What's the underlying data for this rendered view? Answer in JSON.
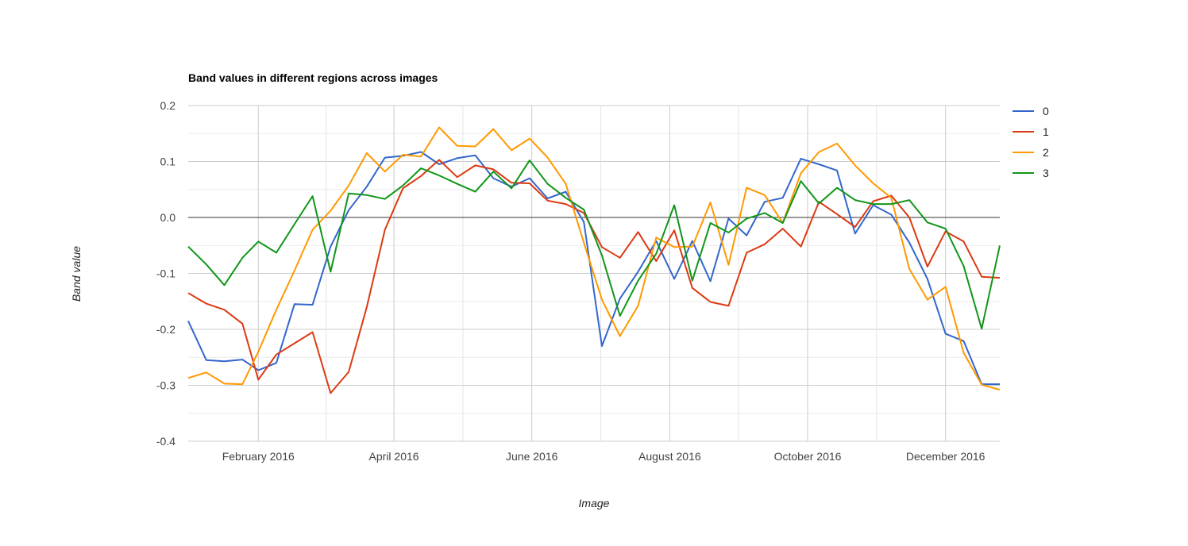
{
  "chart_data": {
    "type": "line",
    "title": "Band values in different regions across images",
    "xlabel": "Image",
    "ylabel": "Band value",
    "ylim": [
      -0.4,
      0.2
    ],
    "y_ticks": [
      "0.2",
      "0.1",
      "0.0",
      "-0.1",
      "-0.2",
      "-0.3",
      "-0.4"
    ],
    "x_ticks": [
      "February 2016",
      "April 2016",
      "June 2016",
      "August 2016",
      "October 2016",
      "December 2016"
    ],
    "x_tick_dates": [
      "2016-02-01",
      "2016-04-01",
      "2016-06-01",
      "2016-08-01",
      "2016-10-01",
      "2016-12-01"
    ],
    "xlim": [
      "2016-01-01",
      "2016-12-25"
    ],
    "grid": true,
    "legend_position": "right",
    "x": [
      "2016-01-01",
      "2016-01-09",
      "2016-01-17",
      "2016-01-25",
      "2016-02-01",
      "2016-02-09",
      "2016-02-17",
      "2016-02-25",
      "2016-03-04",
      "2016-03-12",
      "2016-03-20",
      "2016-03-28",
      "2016-04-05",
      "2016-04-13",
      "2016-04-21",
      "2016-04-29",
      "2016-05-07",
      "2016-05-15",
      "2016-05-23",
      "2016-05-31",
      "2016-06-08",
      "2016-06-16",
      "2016-06-24",
      "2016-07-02",
      "2016-07-10",
      "2016-07-18",
      "2016-07-26",
      "2016-08-03",
      "2016-08-11",
      "2016-08-19",
      "2016-08-27",
      "2016-09-04",
      "2016-09-12",
      "2016-09-20",
      "2016-09-28",
      "2016-10-06",
      "2016-10-14",
      "2016-10-22",
      "2016-10-30",
      "2016-11-07",
      "2016-11-15",
      "2016-11-23",
      "2016-12-01",
      "2016-12-09",
      "2016-12-17",
      "2016-12-25"
    ],
    "series": [
      {
        "name": "0",
        "color": "#3366cc",
        "values": [
          -0.185,
          -0.255,
          -0.257,
          -0.254,
          -0.273,
          -0.26,
          -0.155,
          -0.156,
          -0.052,
          0.013,
          0.055,
          0.107,
          0.11,
          0.117,
          0.095,
          0.106,
          0.111,
          0.07,
          0.055,
          0.07,
          0.034,
          0.046,
          -0.008,
          -0.23,
          -0.145,
          -0.097,
          -0.042,
          -0.11,
          -0.042,
          -0.114,
          -0.002,
          -0.032,
          0.028,
          0.035,
          0.105,
          0.095,
          0.084,
          -0.029,
          0.022,
          0.005,
          -0.045,
          -0.11,
          -0.208,
          -0.221,
          -0.298,
          -0.298
        ]
      },
      {
        "name": "1",
        "color": "#dc3912",
        "values": [
          -0.135,
          -0.154,
          -0.165,
          -0.19,
          -0.29,
          -0.245,
          -0.225,
          -0.205,
          -0.314,
          -0.276,
          -0.16,
          -0.022,
          0.052,
          0.074,
          0.103,
          0.072,
          0.093,
          0.086,
          0.062,
          0.061,
          0.03,
          0.024,
          0.008,
          -0.053,
          -0.072,
          -0.026,
          -0.078,
          -0.023,
          -0.126,
          -0.151,
          -0.158,
          -0.063,
          -0.048,
          -0.02,
          -0.052,
          0.028,
          0.006,
          -0.017,
          0.029,
          0.039,
          0.0,
          -0.088,
          -0.025,
          -0.043,
          -0.106,
          -0.108
        ]
      },
      {
        "name": "2",
        "color": "#ff9900",
        "values": [
          -0.287,
          -0.277,
          -0.297,
          -0.298,
          -0.24,
          -0.165,
          -0.095,
          -0.022,
          0.012,
          0.057,
          0.115,
          0.082,
          0.112,
          0.109,
          0.161,
          0.128,
          0.127,
          0.158,
          0.12,
          0.141,
          0.107,
          0.06,
          -0.045,
          -0.147,
          -0.212,
          -0.158,
          -0.036,
          -0.053,
          -0.052,
          0.027,
          -0.085,
          0.053,
          0.04,
          -0.01,
          0.079,
          0.117,
          0.132,
          0.093,
          0.061,
          0.035,
          -0.092,
          -0.147,
          -0.124,
          -0.242,
          -0.299,
          -0.308
        ]
      },
      {
        "name": "3",
        "color": "#109618",
        "values": [
          -0.052,
          -0.084,
          -0.121,
          -0.072,
          -0.043,
          -0.063,
          -0.012,
          0.038,
          -0.097,
          0.043,
          0.04,
          0.033,
          0.057,
          0.088,
          0.075,
          0.06,
          0.046,
          0.082,
          0.052,
          0.102,
          0.06,
          0.035,
          0.014,
          -0.068,
          -0.176,
          -0.113,
          -0.065,
          0.022,
          -0.113,
          -0.01,
          -0.027,
          -0.002,
          0.008,
          -0.01,
          0.065,
          0.025,
          0.053,
          0.031,
          0.024,
          0.024,
          0.031,
          -0.009,
          -0.02,
          -0.087,
          -0.199,
          -0.05
        ]
      }
    ]
  }
}
